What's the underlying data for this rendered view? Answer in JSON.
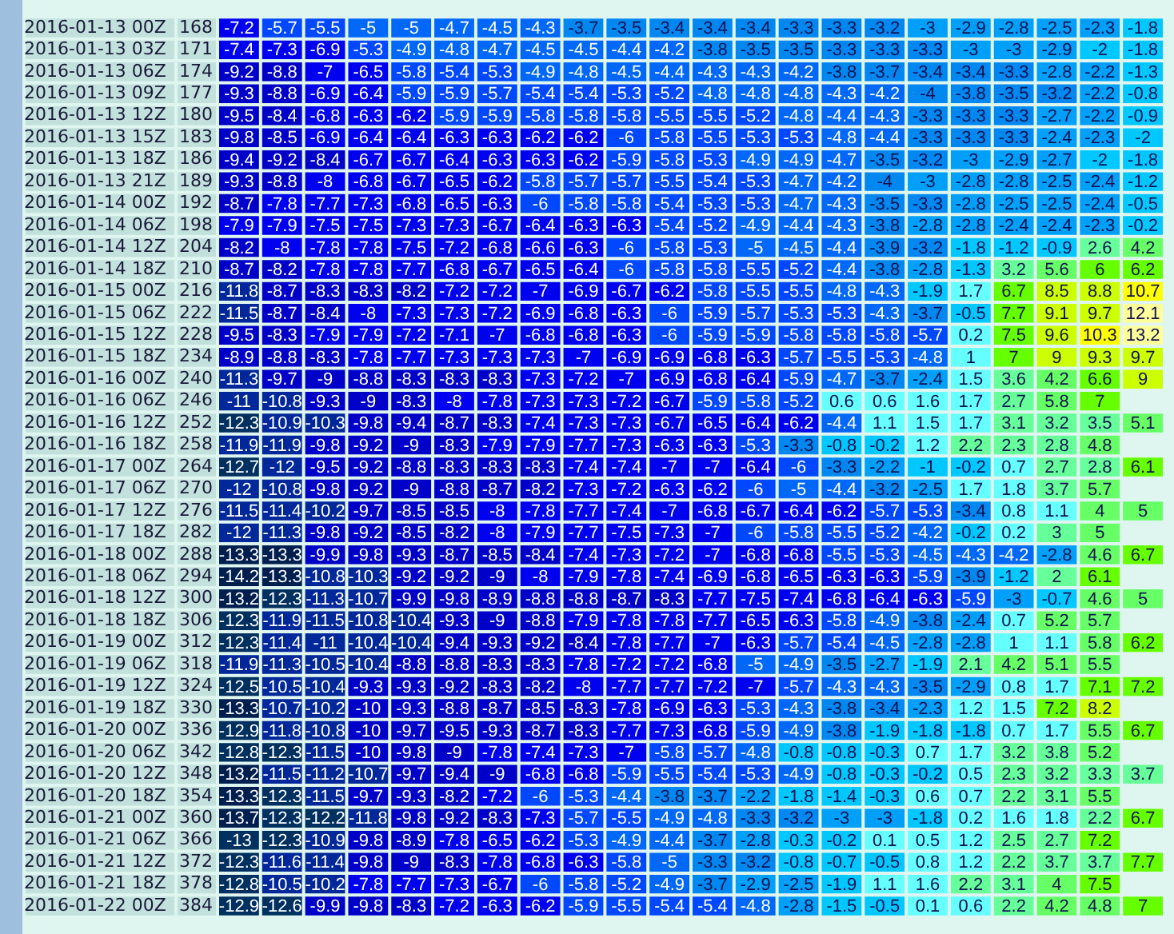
{
  "chart_data": {
    "type": "heatmap",
    "data_labels": true,
    "tick_labels": "y",
    "categories": [
      null,
      null,
      null,
      null,
      null,
      null,
      null,
      null,
      null,
      null,
      null,
      null,
      null,
      null,
      null,
      null,
      null,
      null,
      null,
      null,
      null,
      null
    ],
    "y_categories": [
      "2016-01-13 00Z",
      "2016-01-13 03Z",
      "2016-01-13 06Z",
      "2016-01-13 09Z",
      "2016-01-13 12Z",
      "2016-01-13 15Z",
      "2016-01-13 18Z",
      "2016-01-13 21Z",
      "2016-01-14 00Z",
      "2016-01-14 06Z",
      "2016-01-14 12Z",
      "2016-01-14 18Z",
      "2016-01-15 00Z",
      "2016-01-15 06Z",
      "2016-01-15 12Z",
      "2016-01-15 18Z",
      "2016-01-16 00Z",
      "2016-01-16 06Z",
      "2016-01-16 12Z",
      "2016-01-16 18Z",
      "2016-01-17 00Z",
      "2016-01-17 06Z",
      "2016-01-17 12Z",
      "2016-01-17 18Z",
      "2016-01-18 00Z",
      "2016-01-18 06Z",
      "2016-01-18 12Z",
      "2016-01-18 18Z",
      "2016-01-19 00Z",
      "2016-01-19 06Z",
      "2016-01-19 12Z",
      "2016-01-19 18Z",
      "2016-01-20 00Z",
      "2016-01-20 06Z",
      "2016-01-20 12Z",
      "2016-01-20 18Z",
      "2016-01-21 00Z",
      "2016-01-21 06Z",
      "2016-01-21 12Z",
      "2016-01-21 18Z",
      "2016-01-22 00Z"
    ],
    "y2_categories": [
      "168",
      "171",
      "174",
      "177",
      "180",
      "183",
      "186",
      "189",
      "192",
      "198",
      "204",
      "210",
      "216",
      "222",
      "228",
      "234",
      "240",
      "246",
      "252",
      "258",
      "264",
      "270",
      "276",
      "282",
      "288",
      "294",
      "300",
      "306",
      "312",
      "318",
      "324",
      "330",
      "336",
      "342",
      "348",
      "354",
      "360",
      "366",
      "372",
      "378",
      "384"
    ],
    "cells": [
      [
        -7.2,
        -5.7,
        -5.5,
        -5,
        -5,
        -4.7,
        -4.5,
        -4.3,
        -3.7,
        -3.5,
        -3.4,
        -3.4,
        -3.4,
        -3.3,
        -3.3,
        -3.2,
        -3,
        -2.9,
        -2.8,
        -2.5,
        -2.3,
        -1.8
      ],
      [
        -7.4,
        -7.3,
        -6.9,
        -5.3,
        -4.9,
        -4.8,
        -4.7,
        -4.5,
        -4.5,
        -4.4,
        -4.2,
        -3.8,
        -3.5,
        -3.5,
        -3.3,
        -3.3,
        -3.3,
        -3,
        -3,
        -2.9,
        -2,
        -1.8
      ],
      [
        -9.2,
        -8.8,
        -7,
        -6.5,
        -5.8,
        -5.4,
        -5.3,
        -4.9,
        -4.8,
        -4.5,
        -4.4,
        -4.3,
        -4.3,
        -4.2,
        -3.8,
        -3.7,
        -3.4,
        -3.4,
        -3.3,
        -2.8,
        -2.2,
        -1.3
      ],
      [
        -9.3,
        -8.8,
        -6.9,
        -6.4,
        -5.9,
        -5.9,
        -5.7,
        -5.4,
        -5.4,
        -5.3,
        -5.2,
        -4.8,
        -4.8,
        -4.8,
        -4.3,
        -4.2,
        -4,
        -3.8,
        -3.5,
        -3.2,
        -2.2,
        -0.8
      ],
      [
        -9.5,
        -8.4,
        -6.8,
        -6.3,
        -6.2,
        -5.9,
        -5.9,
        -5.8,
        -5.8,
        -5.8,
        -5.5,
        -5.5,
        -5.2,
        -4.8,
        -4.4,
        -4.3,
        -3.3,
        -3.3,
        -3.3,
        -2.7,
        -2.2,
        -0.9
      ],
      [
        -9.8,
        -8.5,
        -6.9,
        -6.4,
        -6.4,
        -6.3,
        -6.3,
        -6.2,
        -6.2,
        -6,
        -5.8,
        -5.5,
        -5.3,
        -5.3,
        -4.8,
        -4.4,
        -3.3,
        -3.3,
        -3.3,
        -2.4,
        -2.3,
        -2
      ],
      [
        -9.4,
        -9.2,
        -8.4,
        -6.7,
        -6.7,
        -6.4,
        -6.3,
        -6.3,
        -6.2,
        -5.9,
        -5.8,
        -5.3,
        -4.9,
        -4.9,
        -4.7,
        -3.5,
        -3.2,
        -3,
        -2.9,
        -2.7,
        -2,
        -1.8
      ],
      [
        -9.3,
        -8.8,
        -8,
        -6.8,
        -6.7,
        -6.5,
        -6.2,
        -5.8,
        -5.7,
        -5.7,
        -5.5,
        -5.4,
        -5.3,
        -4.7,
        -4.2,
        -4,
        -3,
        -2.8,
        -2.8,
        -2.5,
        -2.4,
        -1.2
      ],
      [
        -8.7,
        -7.8,
        -7.7,
        -7.3,
        -6.8,
        -6.5,
        -6.3,
        -6,
        -5.8,
        -5.8,
        -5.4,
        -5.3,
        -5.3,
        -4.7,
        -4.3,
        -3.5,
        -3.3,
        -2.8,
        -2.5,
        -2.5,
        -2.4,
        -0.5
      ],
      [
        -7.9,
        -7.9,
        -7.5,
        -7.5,
        -7.3,
        -7.3,
        -6.7,
        -6.4,
        -6.3,
        -6.3,
        -5.4,
        -5.2,
        -4.9,
        -4.4,
        -4.3,
        -3.8,
        -2.8,
        -2.8,
        -2.4,
        -2.4,
        -2.3,
        -0.2
      ],
      [
        -8.2,
        -8,
        -7.8,
        -7.8,
        -7.5,
        -7.2,
        -6.8,
        -6.6,
        -6.3,
        -6,
        -5.8,
        -5.3,
        -5,
        -4.5,
        -4.4,
        -3.9,
        -3.2,
        -1.8,
        -1.2,
        -0.9,
        2.6,
        4.2
      ],
      [
        -8.7,
        -8.2,
        -7.8,
        -7.8,
        -7.7,
        -6.8,
        -6.7,
        -6.5,
        -6.4,
        -6,
        -5.8,
        -5.8,
        -5.5,
        -5.2,
        -4.4,
        -3.8,
        -2.8,
        -1.3,
        3.2,
        5.6,
        6,
        6.2
      ],
      [
        -11.8,
        -8.7,
        -8.3,
        -8.3,
        -8.2,
        -7.2,
        -7.2,
        -7,
        -6.9,
        -6.7,
        -6.2,
        -5.8,
        -5.5,
        -5.5,
        -4.8,
        -4.3,
        -1.9,
        1.7,
        6.7,
        8.5,
        8.8,
        10.7
      ],
      [
        -11.5,
        -8.7,
        -8.4,
        -8,
        -7.3,
        -7.3,
        -7.2,
        -6.9,
        -6.8,
        -6.3,
        -6,
        -5.9,
        -5.7,
        -5.3,
        -5.3,
        -4.3,
        -3.7,
        -0.5,
        7.7,
        9.1,
        9.7,
        12.1
      ],
      [
        -9.5,
        -8.3,
        -7.9,
        -7.9,
        -7.2,
        -7.1,
        -7,
        -6.8,
        -6.8,
        -6.3,
        -6,
        -5.9,
        -5.9,
        -5.8,
        -5.8,
        -5.8,
        -5.7,
        0.2,
        7.5,
        9.6,
        10.3,
        13.2
      ],
      [
        -8.9,
        -8.8,
        -8.3,
        -7.8,
        -7.7,
        -7.3,
        -7.3,
        -7.3,
        -7,
        -6.9,
        -6.9,
        -6.8,
        -6.3,
        -5.7,
        -5.5,
        -5.3,
        -4.8,
        1,
        7,
        9,
        9.3,
        9.7
      ],
      [
        -11.3,
        -9.7,
        -9,
        -8.8,
        -8.3,
        -8.3,
        -8.3,
        -7.3,
        -7.2,
        -7,
        -6.9,
        -6.8,
        -6.4,
        -5.9,
        -4.7,
        -3.7,
        -2.4,
        1.5,
        3.6,
        4.2,
        6.6,
        9
      ],
      [
        -11,
        -10.8,
        -9.3,
        -9,
        -8.3,
        -8,
        -7.8,
        -7.3,
        -7.3,
        -7.2,
        -6.7,
        -5.9,
        -5.8,
        -5.2,
        0.6,
        0.6,
        1.6,
        1.7,
        2.7,
        5.8,
        7,
        null
      ],
      [
        -12.3,
        -10.9,
        -10.3,
        -9.8,
        -9.4,
        -8.7,
        -8.3,
        -7.4,
        -7.3,
        -7.3,
        -6.7,
        -6.5,
        -6.4,
        -6.2,
        -4.4,
        1.1,
        1.5,
        1.7,
        3.1,
        3.2,
        3.5,
        5.1
      ],
      [
        -11.9,
        -11.9,
        -9.8,
        -9.2,
        -9,
        -8.3,
        -7.9,
        -7.9,
        -7.7,
        -7.3,
        -6.3,
        -6.3,
        -5.3,
        -3.3,
        -0.8,
        -0.2,
        1.2,
        2.2,
        2.3,
        2.8,
        4.8,
        null
      ],
      [
        -12.7,
        -12,
        -9.5,
        -9.2,
        -8.8,
        -8.3,
        -8.3,
        -8.3,
        -7.4,
        -7.4,
        -7,
        -7,
        -6.4,
        -6,
        -3.3,
        -2.2,
        -1,
        -0.2,
        0.7,
        2.7,
        2.8,
        6.1
      ],
      [
        -12,
        -10.8,
        -9.8,
        -9.2,
        -9,
        -8.8,
        -8.7,
        -8.2,
        -7.3,
        -7.2,
        -6.3,
        -6.2,
        -6,
        -5,
        -4.4,
        -3.2,
        -2.5,
        1.7,
        1.8,
        3.7,
        5.7,
        null
      ],
      [
        -11.5,
        -11.4,
        -10.2,
        -9.7,
        -8.5,
        -8.5,
        -8,
        -7.8,
        -7.7,
        -7.4,
        -7,
        -6.8,
        -6.7,
        -6.4,
        -6.2,
        -5.7,
        -5.3,
        -3.4,
        0.8,
        1.1,
        4,
        5
      ],
      [
        -12,
        -11.3,
        -9.8,
        -9.2,
        -8.5,
        -8.2,
        -8,
        -7.9,
        -7.7,
        -7.5,
        -7.3,
        -7,
        -6,
        -5.8,
        -5.5,
        -5.2,
        -4.2,
        -0.2,
        0.2,
        3,
        5,
        null
      ],
      [
        -13.3,
        -13.3,
        -9.9,
        -9.8,
        -9.3,
        -8.7,
        -8.5,
        -8.4,
        -7.4,
        -7.3,
        -7.2,
        -7,
        -6.8,
        -6.8,
        -5.5,
        -5.3,
        -4.5,
        -4.3,
        -4.2,
        -2.8,
        4.6,
        6.7
      ],
      [
        -14.2,
        -13.3,
        -10.8,
        -10.3,
        -9.2,
        -9.2,
        -9,
        -8,
        -7.9,
        -7.8,
        -7.4,
        -6.9,
        -6.8,
        -6.5,
        -6.3,
        -6.3,
        -5.9,
        -3.9,
        -1.2,
        2,
        6.1,
        null
      ],
      [
        -13.2,
        -12.3,
        -11.3,
        -10.7,
        -9.9,
        -9.8,
        -8.9,
        -8.8,
        -8.8,
        -8.7,
        -8.3,
        -7.7,
        -7.5,
        -7.4,
        -6.8,
        -6.4,
        -6.3,
        -5.9,
        -3,
        -0.7,
        4.6,
        5
      ],
      [
        -12.3,
        -11.9,
        -11.5,
        -10.8,
        -10.4,
        -9.3,
        -9,
        -8.8,
        -7.9,
        -7.8,
        -7.8,
        -7.7,
        -6.5,
        -6.3,
        -5.8,
        -4.9,
        -3.8,
        -2.4,
        0.7,
        5.2,
        5.7,
        null
      ],
      [
        -12.3,
        -11.4,
        -11,
        -10.4,
        -10.4,
        -9.4,
        -9.3,
        -9.2,
        -8.4,
        -7.8,
        -7.7,
        -7,
        -6.3,
        -5.7,
        -5.4,
        -4.5,
        -2.8,
        -2.8,
        1,
        1.1,
        5.8,
        6.2
      ],
      [
        -11.9,
        -11.3,
        -10.5,
        -10.4,
        -8.8,
        -8.8,
        -8.3,
        -8.3,
        -7.8,
        -7.2,
        -7.2,
        -6.8,
        -5,
        -4.9,
        -3.5,
        -2.7,
        -1.9,
        2.1,
        4.2,
        5.1,
        5.5,
        null
      ],
      [
        -12.5,
        -10.5,
        -10.4,
        -9.3,
        -9.3,
        -9.2,
        -8.3,
        -8.2,
        -8,
        -7.7,
        -7.7,
        -7.2,
        -7,
        -5.7,
        -4.3,
        -4.3,
        -3.5,
        -2.9,
        0.8,
        1.7,
        7.1,
        7.2
      ],
      [
        -13.3,
        -10.7,
        -10.2,
        -10,
        -9.3,
        -8.8,
        -8.7,
        -8.5,
        -8.3,
        -7.8,
        -6.9,
        -6.3,
        -5.3,
        -4.3,
        -3.8,
        -3.4,
        -2.3,
        1.2,
        1.5,
        7.2,
        8.2,
        null
      ],
      [
        -12.9,
        -11.8,
        -10.8,
        -10,
        -9.7,
        -9.5,
        -9.3,
        -8.7,
        -8.3,
        -7.7,
        -7.3,
        -6.8,
        -5.9,
        -4.9,
        -3.8,
        -1.9,
        -1.8,
        -1.8,
        0.7,
        1.7,
        5.5,
        6.7
      ],
      [
        -12.8,
        -12.3,
        -11.5,
        -10,
        -9.8,
        -9,
        -7.8,
        -7.4,
        -7.3,
        -7,
        -5.8,
        -5.7,
        -4.8,
        -0.8,
        -0.8,
        -0.3,
        0.7,
        1.7,
        3.2,
        3.8,
        5.2,
        null
      ],
      [
        -13.2,
        -11.5,
        -11.2,
        -10.7,
        -9.7,
        -9.4,
        -9,
        -6.8,
        -6.8,
        -5.9,
        -5.5,
        -5.4,
        -5.3,
        -4.9,
        -0.8,
        -0.3,
        -0.2,
        0.5,
        2.3,
        3.2,
        3.3,
        3.7
      ],
      [
        -13.3,
        -12.3,
        -11.5,
        -9.7,
        -9.3,
        -8.2,
        -7.2,
        -6,
        -5.3,
        -4.4,
        -3.8,
        -3.7,
        -2.2,
        -1.8,
        -1.4,
        -0.3,
        0.6,
        0.7,
        2.2,
        3.1,
        5.5,
        null
      ],
      [
        -13.7,
        -12.3,
        -12.2,
        -11.8,
        -9.8,
        -9.2,
        -8.3,
        -7.3,
        -5.7,
        -5.5,
        -4.9,
        -4.8,
        -3.3,
        -3.2,
        -3,
        -3,
        -1.8,
        0.2,
        1.6,
        1.8,
        2.2,
        6.7
      ],
      [
        -13,
        -12.3,
        -10.9,
        -9.8,
        -8.9,
        -7.8,
        -6.5,
        -6.2,
        -5.3,
        -4.9,
        -4.4,
        -3.7,
        -2.8,
        -0.3,
        -0.2,
        0.1,
        0.5,
        1.2,
        2.5,
        2.7,
        7.2,
        null
      ],
      [
        -12.3,
        -11.6,
        -11.4,
        -9.8,
        -9,
        -8.3,
        -7.8,
        -6.8,
        -6.3,
        -5.8,
        -5,
        -3.3,
        -3.2,
        -0.8,
        -0.7,
        -0.5,
        0.8,
        1.2,
        2.2,
        3.7,
        3.7,
        7.7
      ],
      [
        -12.8,
        -10.5,
        -10.2,
        -7.8,
        -7.7,
        -7.3,
        -6.7,
        -6,
        -5.8,
        -5.2,
        -4.9,
        -3.7,
        -2.9,
        -2.5,
        -1.9,
        1.1,
        1.6,
        2.2,
        3.1,
        4,
        7.5,
        null
      ],
      [
        -12.9,
        -12.6,
        -9.9,
        -9.8,
        -8.3,
        -7.2,
        -6.3,
        -6.2,
        -5.9,
        -5.5,
        -5.4,
        -5.4,
        -4.8,
        -2.8,
        -1.5,
        -0.5,
        0.1,
        0.6,
        2.2,
        4.2,
        4.8,
        7
      ]
    ]
  }
}
